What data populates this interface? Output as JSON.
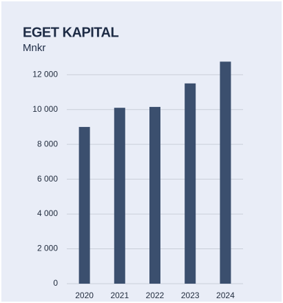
{
  "chart_data": {
    "type": "bar",
    "title": "EGET KAPITAL",
    "subtitle": "Mnkr",
    "categories": [
      "2020",
      "2021",
      "2022",
      "2023",
      "2024"
    ],
    "values": [
      9000,
      10100,
      10150,
      11500,
      12750
    ],
    "color": "#3b4f6e",
    "ylim": [
      0,
      13000
    ],
    "yticks": [
      0,
      {
        "value": 2000,
        "label": "2 000"
      },
      {
        "value": 4000,
        "label": "4 000"
      },
      {
        "value": 6000,
        "label": "6 000"
      },
      {
        "value": 8000,
        "label": "8 000"
      },
      {
        "value": 10000,
        "label": "10 000"
      },
      {
        "value": 12000,
        "label": "12 000"
      }
    ],
    "grid": true
  }
}
